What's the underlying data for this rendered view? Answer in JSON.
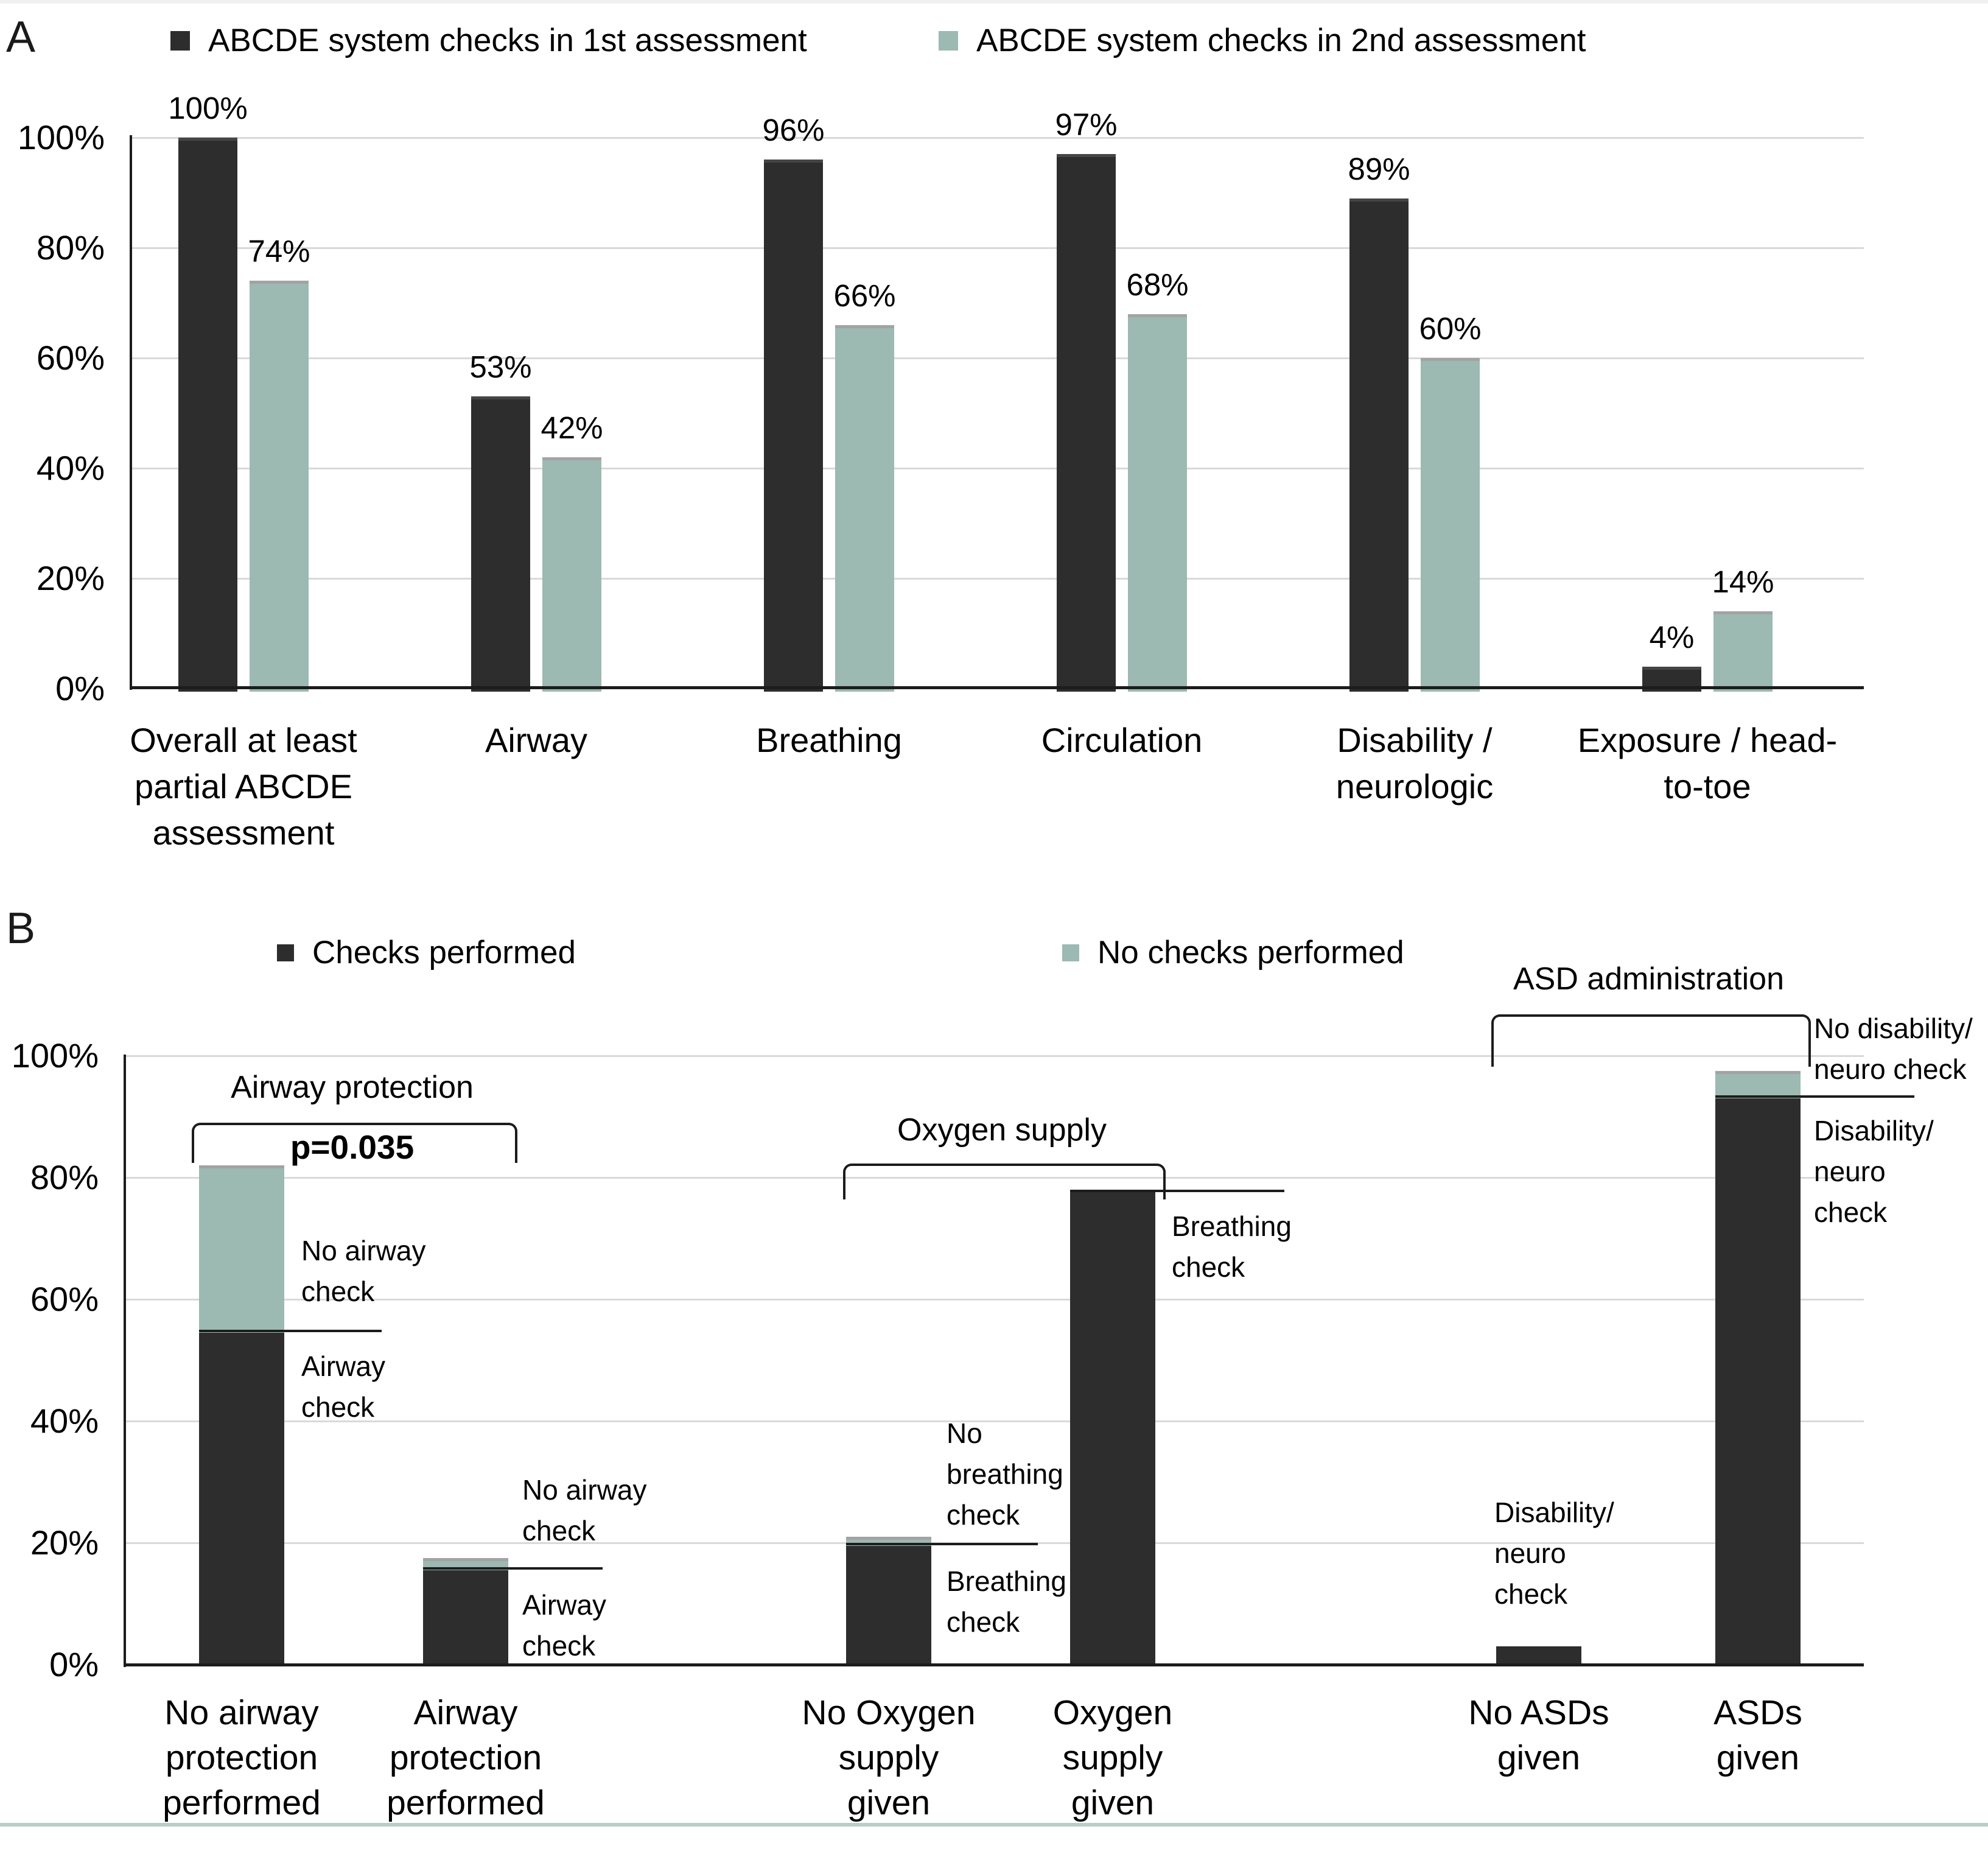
{
  "figure": {
    "colors": {
      "series_dark": "#2d2d2d",
      "series_teal": "#9cb9b2",
      "gridline": "#d9d9d9",
      "axis": "#1c1c1c",
      "bottom_border": "#b7cec8"
    },
    "panel_a": {
      "label": "A",
      "legend": [
        {
          "name": "ABCDE system checks in 1st assessment",
          "color": "#2d2d2d"
        },
        {
          "name": "ABCDE system checks in 2nd assessment",
          "color": "#9cb9b2"
        }
      ],
      "chart_data": {
        "type": "bar",
        "categories": [
          "Overall at least\npartial ABCDE\nassessment",
          "Airway",
          "Breathing",
          "Circulation",
          "Disability /\nneurologic",
          "Exposure / head-\nto-toe"
        ],
        "series": [
          {
            "name": "ABCDE system checks in 1st assessment",
            "values": [
              100,
              53,
              96,
              97,
              89,
              4
            ]
          },
          {
            "name": "ABCDE system checks in 2nd assessment",
            "values": [
              74,
              42,
              66,
              68,
              60,
              14
            ]
          }
        ],
        "value_labels": [
          [
            "100%",
            "53%",
            "96%",
            "97%",
            "89%",
            "4%"
          ],
          [
            "74%",
            "42%",
            "66%",
            "68%",
            "60%",
            "14%"
          ]
        ],
        "ylabel_ticks": [
          "0%",
          "20%",
          "40%",
          "60%",
          "80%",
          "100%"
        ],
        "ylim": [
          0,
          100
        ],
        "grid": true,
        "legend_position": "top"
      }
    },
    "panel_b": {
      "label": "B",
      "legend": [
        {
          "name": "Checks performed",
          "color": "#2d2d2d"
        },
        {
          "name": "No checks performed",
          "color": "#9cb9b2"
        }
      ],
      "chart_data": {
        "type": "stacked-bar",
        "categories": [
          "No airway\nprotection\nperformed",
          "Airway\nprotection\nperformed",
          "No Oxygen\nsupply\ngiven",
          "Oxygen\nsupply\ngiven",
          "No ASDs\ngiven",
          "ASDs\ngiven"
        ],
        "series": [
          {
            "name": "Checks performed",
            "values": [
              55,
              16,
              20,
              78,
              3,
              93.5
            ]
          },
          {
            "name": "No checks performed",
            "values": [
              27,
              1.5,
              1,
              0,
              0,
              4
            ]
          }
        ],
        "ylabel_ticks": [
          "0%",
          "20%",
          "40%",
          "60%",
          "80%",
          "100%"
        ],
        "ylim": [
          0,
          100
        ],
        "grid": true,
        "brackets": [
          {
            "label": "Airway protection",
            "sub_label": "p=0.035",
            "span_categories": [
              0,
              1
            ]
          },
          {
            "label": "Oxygen supply",
            "sub_label": "",
            "span_categories": [
              2,
              3
            ]
          },
          {
            "label": "ASD administration",
            "sub_label": "",
            "span_categories": [
              4,
              5
            ]
          }
        ],
        "annotations": [
          {
            "id": "b1-top",
            "text": "No airway check"
          },
          {
            "id": "b1-bottom",
            "text": "Airway check"
          },
          {
            "id": "b2-top",
            "text": "No airway check"
          },
          {
            "id": "b2-bottom",
            "text": "Airway check"
          },
          {
            "id": "b3-top",
            "text": "No breathing check"
          },
          {
            "id": "b3-bottom",
            "text": "Breathing check"
          },
          {
            "id": "b4-top",
            "text": "Breathing check"
          },
          {
            "id": "b5-above",
            "text": "Disability/ neuro check"
          },
          {
            "id": "b6-top",
            "text": "No disability/ neuro check"
          },
          {
            "id": "b6-bottom",
            "text": "Disability/ neuro check"
          }
        ]
      }
    }
  }
}
